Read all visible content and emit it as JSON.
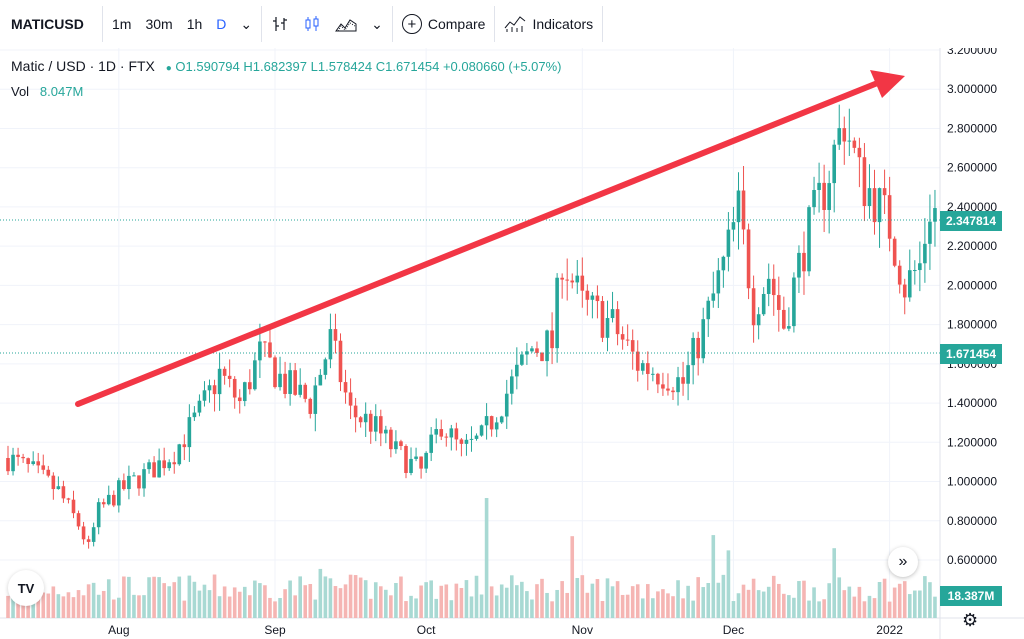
{
  "toolbar": {
    "symbol": "MATICUSD",
    "intervals": [
      "1m",
      "30m",
      "1h",
      "D"
    ],
    "active_interval": "D",
    "compare_label": "Compare",
    "indicators_label": "Indicators"
  },
  "legend": {
    "title": "Matic / USD · 1D · FTX",
    "open": "O1.590794",
    "high": "H1.682397",
    "low": "L1.578424",
    "close": "C1.671454",
    "change": "+0.080660 (+5.07%)",
    "vol_label": "Vol",
    "vol_value": "8.047M"
  },
  "price_tags": {
    "last": "2.347814",
    "crosshair": "1.671454",
    "volume": "18.387M"
  },
  "colors": {
    "up": "#26a69a",
    "down": "#ef5350",
    "arrow": "#f23645",
    "active": "#2962ff"
  },
  "icons": {
    "logo": "tradingview-logo",
    "scroll": "chevron-right-double-icon",
    "settings": "gear-icon"
  },
  "tv_logo_text": "TV",
  "chart_data": {
    "type": "candlestick",
    "title": "Matic / USD · 1D · FTX",
    "y_ticks": [
      "3.200000",
      "3.000000",
      "2.800000",
      "2.600000",
      "2.400000",
      "2.200000",
      "2.000000",
      "1.800000",
      "1.600000",
      "1.400000",
      "1.200000",
      "1.000000",
      "0.800000",
      "0.600000"
    ],
    "ylim": [
      0.5,
      3.25
    ],
    "x_ticks": [
      "Aug",
      "Sep",
      "Oct",
      "Nov",
      "Dec",
      "2022"
    ],
    "x_tick_days": [
      22,
      53,
      83,
      114,
      144,
      175
    ],
    "n_days": 185,
    "anchors": [
      [
        0,
        1.12
      ],
      [
        5,
        1.05
      ],
      [
        10,
        0.95
      ],
      [
        14,
        0.78
      ],
      [
        16,
        0.66
      ],
      [
        18,
        0.85
      ],
      [
        22,
        0.95
      ],
      [
        28,
        1.05
      ],
      [
        33,
        1.15
      ],
      [
        38,
        1.35
      ],
      [
        42,
        1.55
      ],
      [
        46,
        1.4
      ],
      [
        50,
        1.65
      ],
      [
        55,
        1.5
      ],
      [
        60,
        1.4
      ],
      [
        64,
        1.72
      ],
      [
        68,
        1.35
      ],
      [
        72,
        1.3
      ],
      [
        77,
        1.15
      ],
      [
        82,
        1.05
      ],
      [
        86,
        1.3
      ],
      [
        90,
        1.15
      ],
      [
        94,
        1.22
      ],
      [
        100,
        1.5
      ],
      [
        104,
        1.68
      ],
      [
        108,
        1.7
      ],
      [
        110,
        2.15
      ],
      [
        114,
        1.9
      ],
      [
        120,
        1.8
      ],
      [
        125,
        1.6
      ],
      [
        130,
        1.55
      ],
      [
        134,
        1.5
      ],
      [
        138,
        1.78
      ],
      [
        142,
        2.1
      ],
      [
        145,
        2.38
      ],
      [
        148,
        1.9
      ],
      [
        151,
        2.05
      ],
      [
        154,
        1.8
      ],
      [
        158,
        2.2
      ],
      [
        162,
        2.5
      ],
      [
        166,
        2.85
      ],
      [
        169,
        2.55
      ],
      [
        172,
        2.45
      ],
      [
        175,
        2.3
      ],
      [
        178,
        2.0
      ],
      [
        181,
        2.1
      ],
      [
        183,
        2.4
      ],
      [
        185,
        2.35
      ]
    ],
    "volume": {
      "max": 110,
      "spikes": [
        [
          62,
          45
        ],
        [
          95,
          110
        ],
        [
          112,
          75
        ],
        [
          140,
          76
        ],
        [
          143,
          62
        ],
        [
          164,
          64
        ]
      ]
    },
    "annotation": "upward trend arrow"
  }
}
